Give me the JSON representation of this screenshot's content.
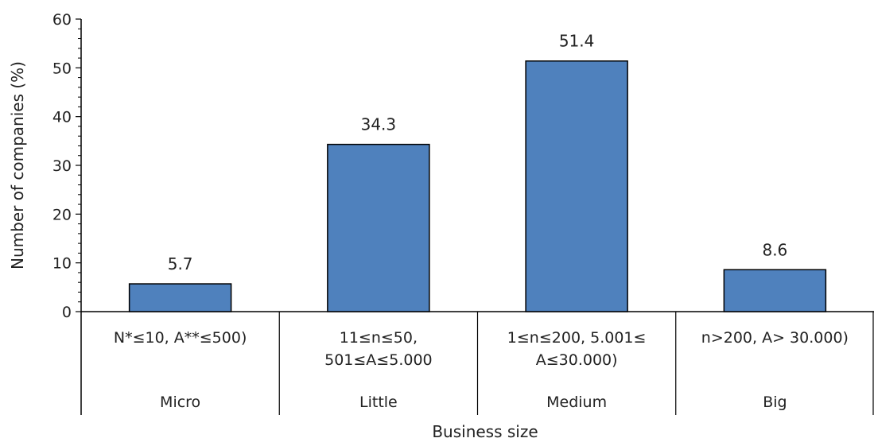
{
  "chart_data": {
    "type": "bar",
    "title": "",
    "ylabel": "Number of companies (%)",
    "xlabel": "Business size",
    "ylim": [
      0,
      60
    ],
    "yticks": [
      "0",
      "10",
      "20",
      "30",
      "40",
      "50",
      "60"
    ],
    "categories": [
      "Micro",
      "Little",
      "Medium",
      "Big"
    ],
    "criteria": [
      [
        "N*≤10, A**≤500)"
      ],
      [
        "11≤n≤50,",
        "501≤A≤5.000"
      ],
      [
        "1≤n≤200, 5.001≤",
        "A≤30.000)"
      ],
      [
        "n>200, A> 30.000)"
      ]
    ],
    "values": [
      5.7,
      34.3,
      51.4,
      8.6
    ],
    "data_labels": [
      "5.7",
      "34.3",
      "51.4",
      "8.6"
    ],
    "bar_color": "#4f81bd",
    "bar_edge_color": "#000000",
    "grid": false
  }
}
